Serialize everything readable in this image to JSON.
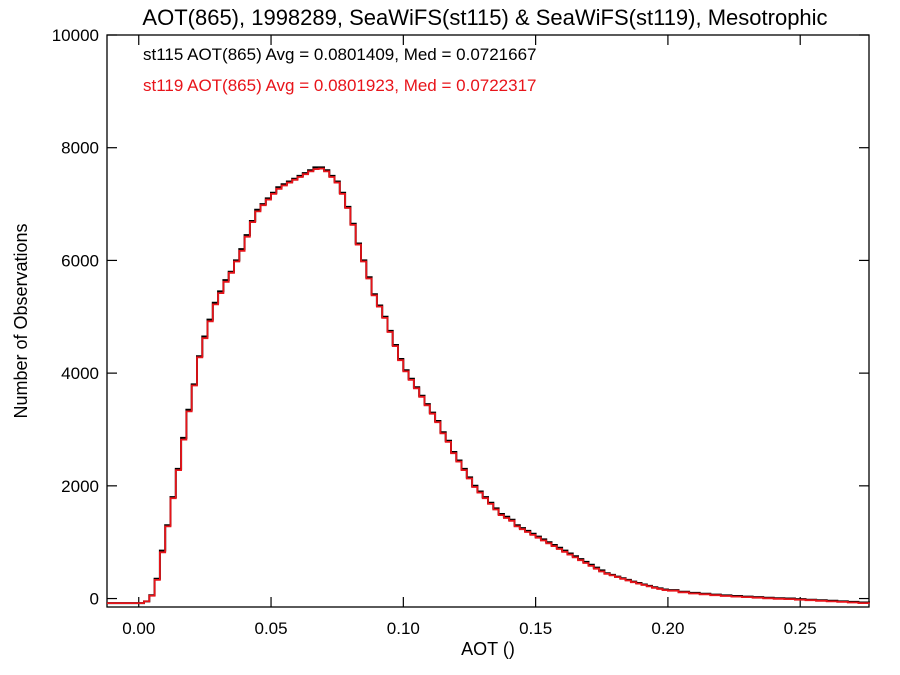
{
  "chart_data": {
    "type": "line",
    "step": true,
    "title": "AOT(865), 1998289, SeaWiFS(st115) & SeaWiFS(st119), Mesotrophic",
    "xlabel": "AOT ()",
    "ylabel": "Number of Observations",
    "xlim": [
      -0.012,
      0.276
    ],
    "ylim": [
      -150,
      10000
    ],
    "x_ticks": [
      0.0,
      0.05,
      0.1,
      0.15,
      0.2,
      0.25
    ],
    "x_tick_labels": [
      "0.00",
      "0.05",
      "0.10",
      "0.15",
      "0.20",
      "0.25"
    ],
    "y_ticks": [
      0,
      2000,
      4000,
      6000,
      8000,
      10000
    ],
    "y_tick_labels": [
      "0",
      "2000",
      "4000",
      "6000",
      "8000",
      "10000"
    ],
    "grid": false,
    "legend_position": "top-left",
    "annotations": [
      {
        "text": "st115 AOT(865) Avg = 0.0801409, Med = 0.0721667",
        "color": "#000000"
      },
      {
        "text": "st119 AOT(865) Avg = 0.0801923, Med = 0.0722317",
        "color": "#e8141a"
      }
    ],
    "series": [
      {
        "color": "#000000",
        "x": [
          -0.012,
          0.0,
          0.002,
          0.004,
          0.006,
          0.008,
          0.01,
          0.012,
          0.014,
          0.016,
          0.018,
          0.02,
          0.022,
          0.024,
          0.026,
          0.028,
          0.03,
          0.032,
          0.034,
          0.036,
          0.038,
          0.04,
          0.042,
          0.044,
          0.046,
          0.048,
          0.05,
          0.052,
          0.054,
          0.056,
          0.058,
          0.06,
          0.062,
          0.064,
          0.066,
          0.068,
          0.07,
          0.072,
          0.074,
          0.076,
          0.078,
          0.08,
          0.082,
          0.084,
          0.086,
          0.088,
          0.09,
          0.092,
          0.094,
          0.096,
          0.098,
          0.1,
          0.102,
          0.104,
          0.106,
          0.108,
          0.11,
          0.112,
          0.114,
          0.116,
          0.118,
          0.12,
          0.122,
          0.124,
          0.126,
          0.128,
          0.13,
          0.132,
          0.134,
          0.136,
          0.138,
          0.14,
          0.142,
          0.144,
          0.146,
          0.148,
          0.15,
          0.152,
          0.154,
          0.156,
          0.158,
          0.16,
          0.162,
          0.164,
          0.166,
          0.168,
          0.17,
          0.172,
          0.174,
          0.176,
          0.178,
          0.18,
          0.182,
          0.184,
          0.186,
          0.188,
          0.19,
          0.192,
          0.194,
          0.196,
          0.198,
          0.2,
          0.204,
          0.208,
          0.212,
          0.216,
          0.22,
          0.224,
          0.228,
          0.232,
          0.236,
          0.24,
          0.244,
          0.248,
          0.252,
          0.256,
          0.26,
          0.264,
          0.268,
          0.272,
          0.276
        ],
        "y": [
          -80,
          -80,
          -50,
          60,
          350,
          850,
          1300,
          1800,
          2300,
          2850,
          3350,
          3800,
          4300,
          4650,
          4950,
          5250,
          5450,
          5650,
          5800,
          6000,
          6200,
          6450,
          6700,
          6900,
          7000,
          7100,
          7200,
          7300,
          7350,
          7400,
          7450,
          7500,
          7550,
          7600,
          7650,
          7650,
          7600,
          7500,
          7400,
          7200,
          6950,
          6650,
          6300,
          6000,
          5700,
          5400,
          5200,
          5000,
          4750,
          4500,
          4250,
          4050,
          3900,
          3750,
          3600,
          3450,
          3300,
          3150,
          2950,
          2800,
          2600,
          2450,
          2300,
          2150,
          2000,
          1900,
          1800,
          1700,
          1600,
          1500,
          1450,
          1400,
          1300,
          1250,
          1200,
          1150,
          1100,
          1050,
          1000,
          950,
          900,
          850,
          800,
          750,
          700,
          650,
          600,
          550,
          500,
          450,
          420,
          390,
          360,
          330,
          300,
          275,
          250,
          225,
          200,
          180,
          160,
          150,
          120,
          100,
          85,
          70,
          55,
          45,
          35,
          25,
          15,
          5,
          0,
          -10,
          -20,
          -30,
          -40,
          -50,
          -60,
          -70,
          -80
        ]
      },
      {
        "color": "#e8141a",
        "x": [
          -0.012,
          0.0,
          0.002,
          0.004,
          0.006,
          0.008,
          0.01,
          0.012,
          0.014,
          0.016,
          0.018,
          0.02,
          0.022,
          0.024,
          0.026,
          0.028,
          0.03,
          0.032,
          0.034,
          0.036,
          0.038,
          0.04,
          0.042,
          0.044,
          0.046,
          0.048,
          0.05,
          0.052,
          0.054,
          0.056,
          0.058,
          0.06,
          0.062,
          0.064,
          0.066,
          0.068,
          0.07,
          0.072,
          0.074,
          0.076,
          0.078,
          0.08,
          0.082,
          0.084,
          0.086,
          0.088,
          0.09,
          0.092,
          0.094,
          0.096,
          0.098,
          0.1,
          0.102,
          0.104,
          0.106,
          0.108,
          0.11,
          0.112,
          0.114,
          0.116,
          0.118,
          0.12,
          0.122,
          0.124,
          0.126,
          0.128,
          0.13,
          0.132,
          0.134,
          0.136,
          0.138,
          0.14,
          0.142,
          0.144,
          0.146,
          0.148,
          0.15,
          0.152,
          0.154,
          0.156,
          0.158,
          0.16,
          0.162,
          0.164,
          0.166,
          0.168,
          0.17,
          0.172,
          0.174,
          0.176,
          0.178,
          0.18,
          0.182,
          0.184,
          0.186,
          0.188,
          0.19,
          0.192,
          0.194,
          0.196,
          0.198,
          0.2,
          0.204,
          0.208,
          0.212,
          0.216,
          0.22,
          0.224,
          0.228,
          0.232,
          0.236,
          0.24,
          0.244,
          0.248,
          0.252,
          0.256,
          0.26,
          0.264,
          0.268,
          0.272,
          0.276
        ],
        "y": [
          -80,
          -80,
          -50,
          50,
          330,
          820,
          1280,
          1780,
          2280,
          2820,
          3320,
          3780,
          4280,
          4620,
          4920,
          5220,
          5420,
          5620,
          5780,
          5980,
          6170,
          6420,
          6680,
          6870,
          6980,
          7080,
          7180,
          7270,
          7330,
          7380,
          7430,
          7480,
          7530,
          7580,
          7620,
          7630,
          7580,
          7480,
          7380,
          7180,
          6930,
          6630,
          6280,
          5980,
          5680,
          5380,
          5180,
          4980,
          4730,
          4480,
          4230,
          4030,
          3880,
          3730,
          3580,
          3430,
          3280,
          3130,
          2930,
          2780,
          2580,
          2430,
          2280,
          2130,
          1980,
          1880,
          1780,
          1680,
          1580,
          1480,
          1430,
          1380,
          1280,
          1230,
          1180,
          1130,
          1080,
          1030,
          980,
          930,
          880,
          830,
          780,
          730,
          680,
          630,
          580,
          530,
          480,
          440,
          410,
          380,
          350,
          320,
          290,
          265,
          240,
          215,
          190,
          170,
          150,
          140,
          110,
          90,
          75,
          60,
          45,
          35,
          25,
          15,
          5,
          -5,
          -10,
          -20,
          -30,
          -40,
          -50,
          -60,
          -70,
          -80,
          -90
        ]
      }
    ]
  }
}
